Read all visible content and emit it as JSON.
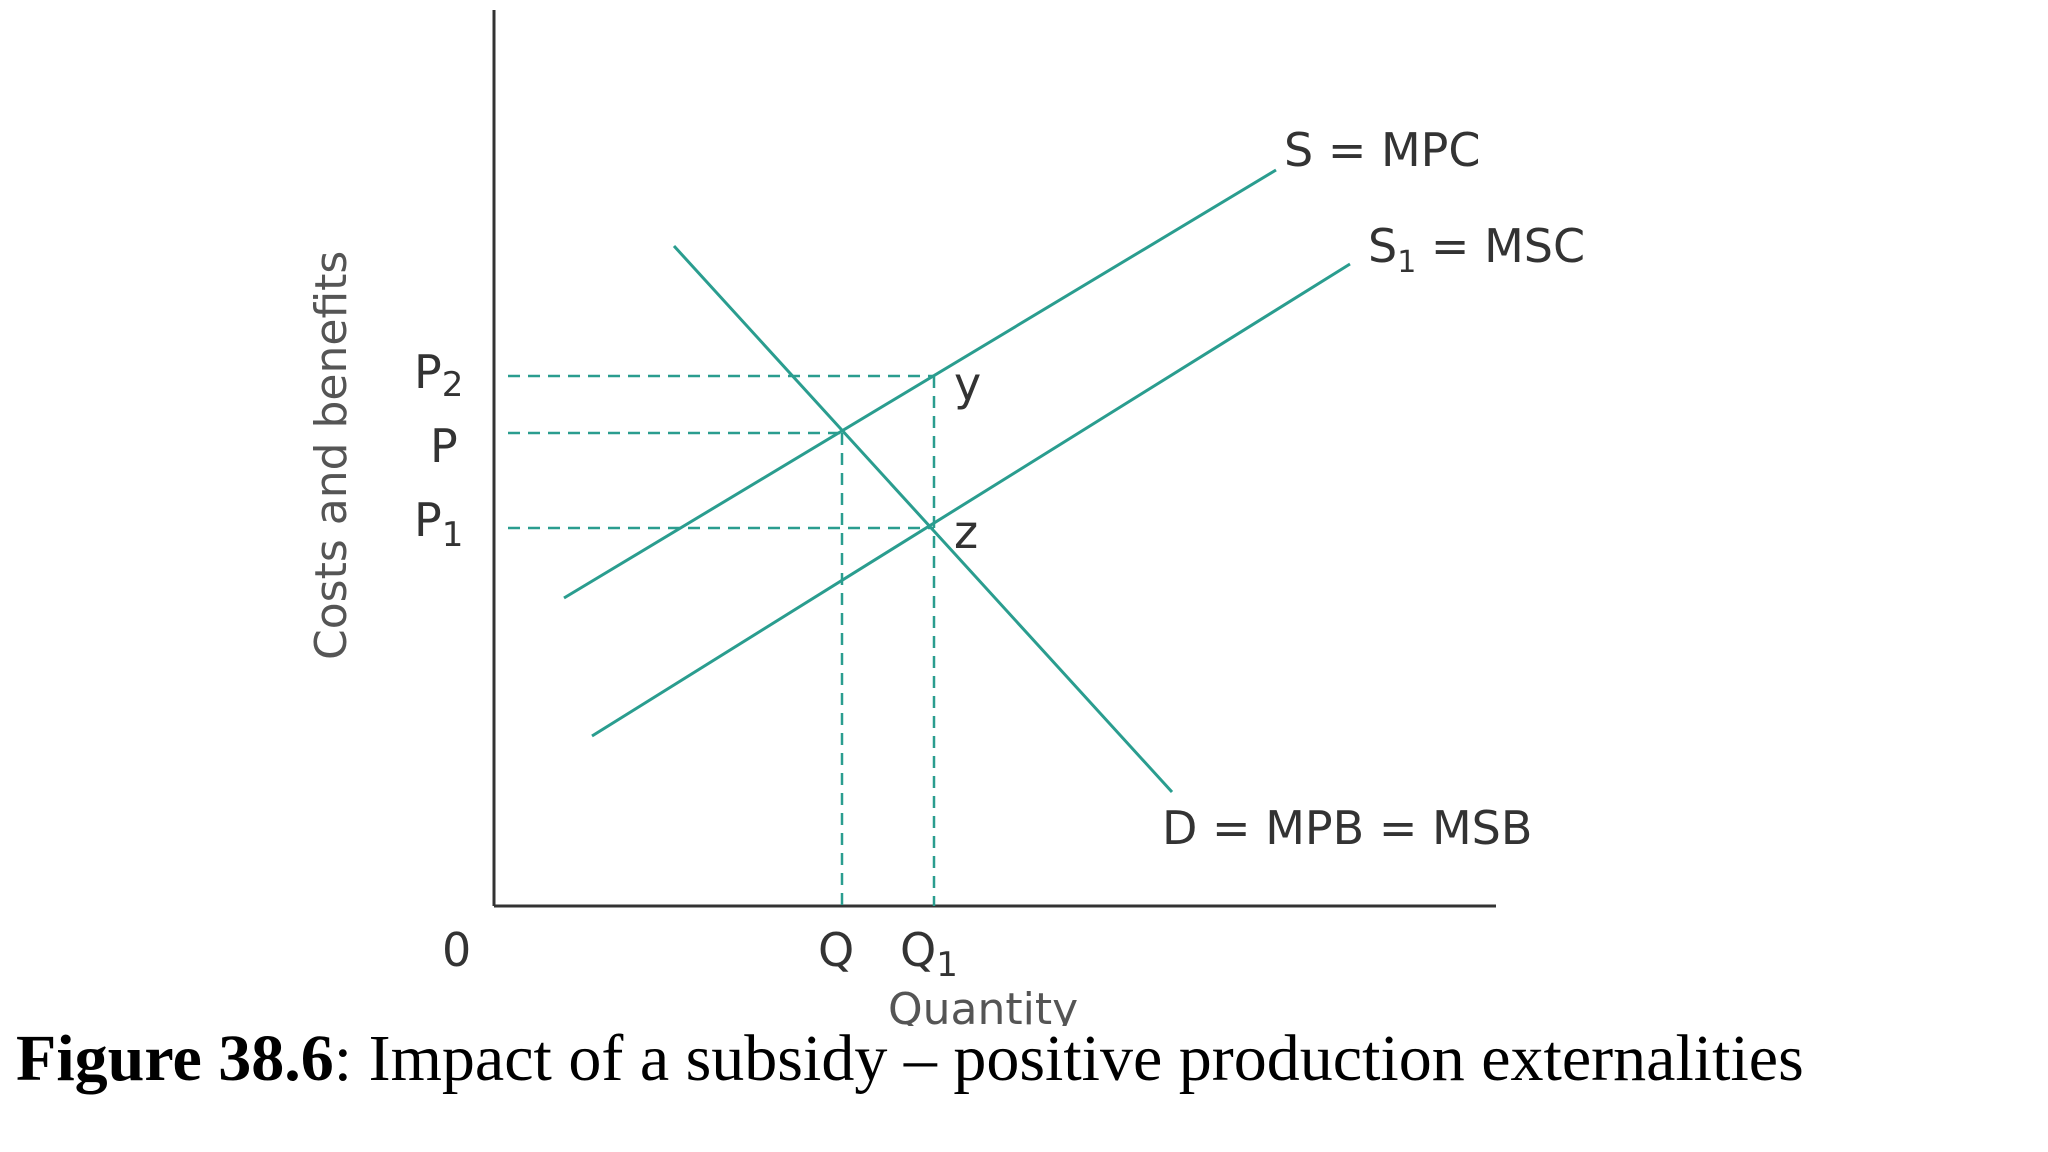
{
  "colors": {
    "curve": "#2a9d8f",
    "guide": "#2a9d8f",
    "axis": "#333333"
  },
  "labels": {
    "origin": "0",
    "y_axis_title": "Costs and benefits",
    "x_axis_title": "Quantity",
    "y_ticks": {
      "p2_main": "P",
      "p2_sub": "2",
      "p": "P",
      "p1_main": "P",
      "p1_sub": "1"
    },
    "x_ticks": {
      "q": "Q",
      "q1_main": "Q",
      "q1_sub": "1"
    },
    "points": {
      "y": "y",
      "z": "z"
    },
    "curves": {
      "mpc": "S = MPC",
      "msc_main": "S",
      "msc_sub": "1",
      "msc_rest": " = MSC",
      "demand": "D = MPB = MSB"
    }
  },
  "caption": {
    "label": "Figure 38.6",
    "text": ": Impact of a subsidy – positive production externalities"
  }
}
